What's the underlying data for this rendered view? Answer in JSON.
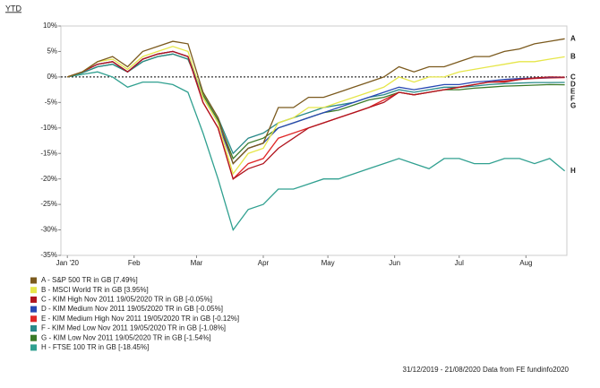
{
  "chart_data": {
    "type": "line",
    "title": "YTD",
    "source": "31/12/2019 - 21/08/2020 Data from FE fundinfo2020",
    "x": [
      1,
      8,
      15,
      22,
      29,
      36,
      43,
      50,
      57,
      64,
      71,
      78,
      85,
      92,
      99,
      106,
      113,
      120,
      127,
      134,
      141,
      148,
      155,
      162,
      169,
      176,
      183,
      190,
      197,
      204,
      211,
      218,
      225,
      232
    ],
    "xlim": [
      -2,
      233
    ],
    "xticks": [
      {
        "value": 1,
        "label": "Jan '20"
      },
      {
        "value": 32,
        "label": "Feb"
      },
      {
        "value": 61,
        "label": "Mar"
      },
      {
        "value": 92,
        "label": "Apr"
      },
      {
        "value": 122,
        "label": "May"
      },
      {
        "value": 153,
        "label": "Jun"
      },
      {
        "value": 183,
        "label": "Jul"
      },
      {
        "value": 214,
        "label": "Aug"
      }
    ],
    "ylim": [
      -35,
      10
    ],
    "yticks": [
      {
        "value": 10,
        "label": "10%"
      },
      {
        "value": 5,
        "label": "5%"
      },
      {
        "value": 0,
        "label": "0%"
      },
      {
        "value": -5,
        "label": "-5%"
      },
      {
        "value": -10,
        "label": "-10%"
      },
      {
        "value": -15,
        "label": "-15%"
      },
      {
        "value": -20,
        "label": "-20%"
      },
      {
        "value": -25,
        "label": "-25%"
      },
      {
        "value": -30,
        "label": "-30%"
      },
      {
        "value": -35,
        "label": "-35%"
      }
    ],
    "series": [
      {
        "name": "A - S&P 500 TR in GB [7.49%]",
        "tag": "A",
        "color": "#7b5a1e",
        "values": [
          0,
          1,
          3,
          4,
          2,
          5,
          6,
          7,
          6.5,
          -3,
          -8,
          -17,
          -14,
          -13,
          -6,
          -6,
          -4,
          -4,
          -3,
          -2,
          -1,
          0,
          2,
          1,
          2,
          2,
          3,
          4,
          4,
          5,
          5.5,
          6.5,
          7,
          7.49
        ]
      },
      {
        "name": "B - MSCI World TR in GB [3.95%]",
        "tag": "B",
        "color": "#e6e64a",
        "values": [
          0,
          1,
          3,
          3.5,
          1.5,
          4,
          5,
          6,
          5,
          -4,
          -9,
          -19,
          -15,
          -14,
          -9,
          -8,
          -6,
          -6,
          -5,
          -4,
          -3,
          -2,
          0,
          -1,
          0,
          0,
          1,
          1.5,
          2,
          2.5,
          3,
          3,
          3.5,
          3.95
        ]
      },
      {
        "name": "C - KIM High Nov 2011  19/05/2020 TR in GB [-0.05%]",
        "tag": "C",
        "color": "#b0141e",
        "values": [
          0,
          1,
          2.5,
          3,
          1,
          3.5,
          4.5,
          5,
          4,
          -5,
          -10,
          -20,
          -18,
          -17,
          -14,
          -12,
          -10,
          -9,
          -8,
          -7,
          -6,
          -5,
          -3,
          -3.5,
          -3,
          -2.5,
          -2,
          -1.5,
          -1,
          -1,
          -0.5,
          -0.2,
          0,
          -0.05
        ]
      },
      {
        "name": "D - KIM Medium Nov 2011  19/05/2020 TR in GB [-0.05%]",
        "tag": "D",
        "color": "#2848b4",
        "values": [
          0,
          1,
          2.5,
          3,
          1,
          3.5,
          4.5,
          5,
          4,
          -4,
          -9,
          -17,
          -14,
          -13,
          -10,
          -9,
          -8,
          -7,
          -6,
          -5,
          -4,
          -3,
          -2,
          -2.5,
          -2,
          -1.5,
          -1.5,
          -1,
          -0.8,
          -0.5,
          -0.3,
          -0.2,
          -0.1,
          -0.05
        ]
      },
      {
        "name": "E - KIM Medium High Nov 2011  19/05/2020 TR in GB [-0.12%]",
        "tag": "E",
        "color": "#e02828",
        "values": [
          0,
          1,
          2.5,
          3,
          1,
          3.5,
          4.5,
          5,
          4,
          -5,
          -10,
          -20,
          -17,
          -16,
          -12,
          -11,
          -10,
          -9,
          -8,
          -7,
          -6,
          -4.5,
          -3,
          -3.5,
          -3,
          -2.5,
          -2,
          -1.5,
          -1,
          -0.8,
          -0.5,
          -0.3,
          -0.2,
          -0.12
        ]
      },
      {
        "name": "F - KIM Med Low Nov 2011  19/05/2020 TR in GB [-1.08%]",
        "tag": "F",
        "color": "#2a8a8a",
        "values": [
          0,
          0.8,
          2,
          2.5,
          1,
          3,
          4,
          4.5,
          3.5,
          -3,
          -8,
          -15,
          -12,
          -11,
          -9,
          -8,
          -7,
          -6,
          -5.5,
          -5,
          -4,
          -3.5,
          -2.5,
          -3,
          -2.5,
          -2,
          -2,
          -1.8,
          -1.5,
          -1.3,
          -1.2,
          -1.1,
          -1.1,
          -1.08
        ]
      },
      {
        "name": "G - KIM Low Nov 2011  19/05/2020 TR in GB [-1.54%]",
        "tag": "G",
        "color": "#3a7a28",
        "values": [
          0,
          0.8,
          2,
          2.5,
          1,
          3,
          4,
          4.5,
          3.5,
          -3.5,
          -8.5,
          -16,
          -13,
          -12,
          -10,
          -9,
          -8,
          -7,
          -6.5,
          -5.5,
          -4.5,
          -4,
          -3,
          -3.5,
          -3,
          -2.5,
          -2.5,
          -2.2,
          -2,
          -1.8,
          -1.7,
          -1.6,
          -1.5,
          -1.54
        ]
      },
      {
        "name": "H - FTSE 100 TR in GB [-18.45%]",
        "tag": "H",
        "color": "#30a090",
        "values": [
          0,
          0.5,
          1,
          0,
          -2,
          -1,
          -1,
          -1.5,
          -3,
          -11,
          -20,
          -30,
          -26,
          -25,
          -22,
          -22,
          -21,
          -20,
          -20,
          -19,
          -18,
          -17,
          -16,
          -17,
          -18,
          -16,
          -16,
          -17,
          -17,
          -16,
          -16,
          -17,
          -16,
          -18.45
        ]
      }
    ]
  }
}
